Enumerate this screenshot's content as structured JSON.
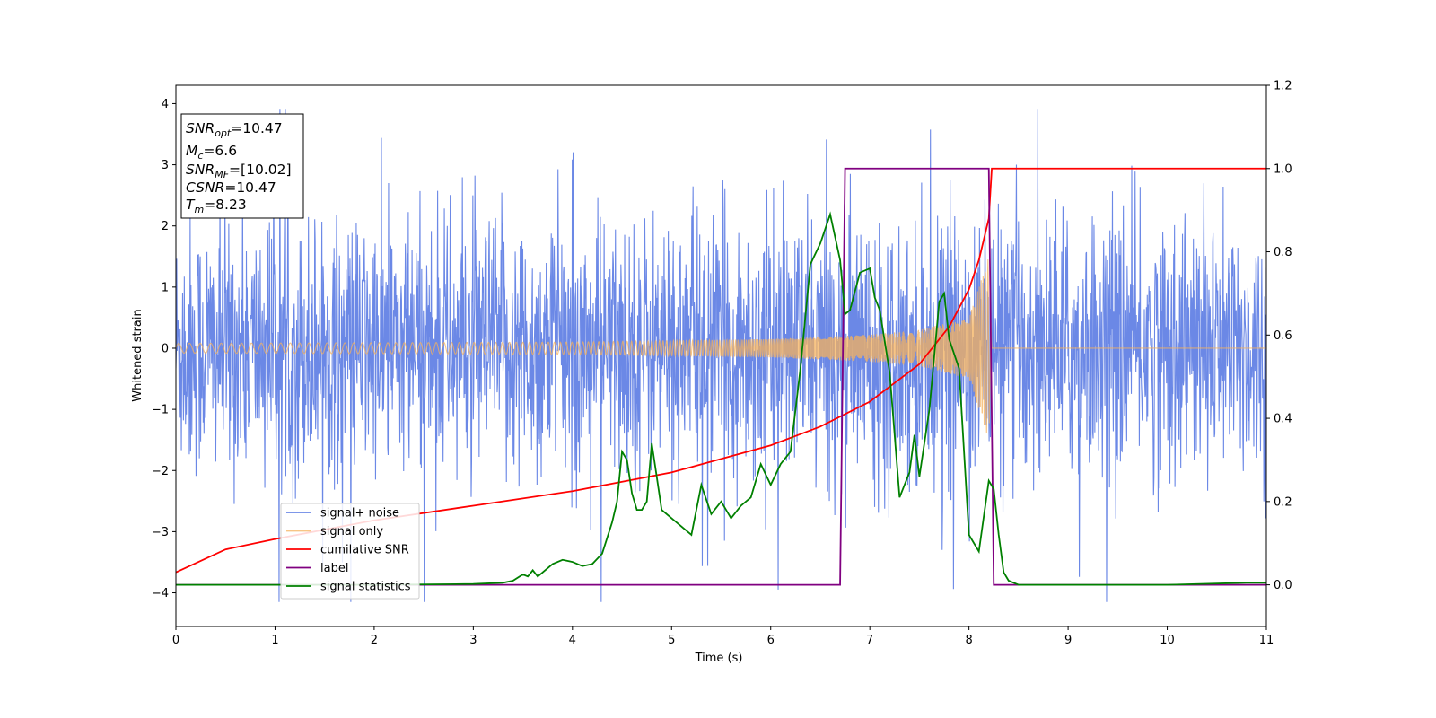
{
  "chart_data": {
    "type": "line",
    "xlabel": "Time (s)",
    "ylabel": "Whitened strain",
    "ylabel_right": "",
    "xlim": [
      0,
      11
    ],
    "ylim": [
      -4.55,
      4.3
    ],
    "ylim_right": [
      -0.1,
      1.2
    ],
    "x_ticks": [
      "0",
      "1",
      "2",
      "3",
      "4",
      "5",
      "6",
      "7",
      "8",
      "9",
      "10",
      "11"
    ],
    "y_ticks": [
      "4",
      "3",
      "2",
      "1",
      "0",
      "−1",
      "−2",
      "−3",
      "−4"
    ],
    "y_right_ticks": [
      "1.2",
      "1.0",
      "0.8",
      "0.6",
      "0.4",
      "0.2",
      "0.0"
    ],
    "grid": false,
    "legend_position": "lower-left",
    "colors": {
      "signal_noise": "#6b88e6",
      "signal_only": "#f5b25c",
      "cumulative_snr": "#ff0000",
      "label": "#800080",
      "signal_statistics": "#008000"
    },
    "annotation": [
      {
        "name": "SNR",
        "sub": "opt",
        "value": "=10.47"
      },
      {
        "name": "M",
        "sub": "c",
        "value": "=6.6"
      },
      {
        "name": "SNR",
        "sub": "MF",
        "value": "=[10.02]"
      },
      {
        "name": "CSNR",
        "sub": "",
        "value": "=10.47"
      },
      {
        "name": "T",
        "sub": "m",
        "value": "=8.23"
      }
    ],
    "series": [
      {
        "name": "signal+ noise",
        "axis": "left",
        "description_range": [
          -4.15,
          3.9
        ],
        "x": [
          0,
          11
        ]
      },
      {
        "name": "signal only",
        "axis": "left",
        "merger_time": 8.23,
        "envelope": {
          "x": [
            0,
            2,
            4,
            6,
            7,
            7.5,
            8,
            8.2,
            8.23
          ],
          "amp": [
            0.08,
            0.09,
            0.1,
            0.15,
            0.22,
            0.3,
            0.5,
            1.5,
            0.0
          ]
        }
      },
      {
        "name": "cumilative SNR",
        "axis": "right",
        "x": [
          0,
          0.5,
          1,
          2,
          3,
          4,
          5,
          6,
          6.5,
          7,
          7.5,
          7.8,
          8.0,
          8.1,
          8.2,
          8.23,
          11
        ],
        "y": [
          0.03,
          0.085,
          0.11,
          0.155,
          0.19,
          0.225,
          0.27,
          0.335,
          0.38,
          0.44,
          0.53,
          0.62,
          0.71,
          0.78,
          0.88,
          1.0,
          1.0
        ]
      },
      {
        "name": "label",
        "axis": "right",
        "x": [
          0,
          6.7,
          6.75,
          8.2,
          8.25,
          11
        ],
        "y": [
          0,
          0,
          1,
          1,
          0,
          0
        ]
      },
      {
        "name": "signal statistics",
        "axis": "right",
        "x": [
          0,
          1,
          2,
          3,
          3.3,
          3.4,
          3.5,
          3.55,
          3.6,
          3.65,
          3.7,
          3.8,
          3.9,
          4.0,
          4.1,
          4.2,
          4.3,
          4.4,
          4.45,
          4.5,
          4.55,
          4.6,
          4.65,
          4.7,
          4.75,
          4.8,
          4.9,
          5.0,
          5.1,
          5.2,
          5.3,
          5.4,
          5.5,
          5.6,
          5.7,
          5.8,
          5.9,
          6.0,
          6.1,
          6.2,
          6.3,
          6.4,
          6.5,
          6.6,
          6.7,
          6.75,
          6.8,
          6.9,
          7.0,
          7.05,
          7.1,
          7.2,
          7.3,
          7.4,
          7.45,
          7.5,
          7.6,
          7.7,
          7.75,
          7.8,
          7.9,
          8.0,
          8.1,
          8.2,
          8.25,
          8.3,
          8.35,
          8.4,
          8.5,
          8.6,
          9,
          10,
          10.8,
          11
        ],
        "y": [
          0.0,
          0.0,
          0.0,
          0.002,
          0.005,
          0.01,
          0.025,
          0.02,
          0.035,
          0.02,
          0.03,
          0.05,
          0.06,
          0.055,
          0.045,
          0.05,
          0.075,
          0.15,
          0.2,
          0.32,
          0.3,
          0.22,
          0.18,
          0.18,
          0.2,
          0.34,
          0.18,
          0.16,
          0.14,
          0.12,
          0.24,
          0.17,
          0.2,
          0.16,
          0.19,
          0.21,
          0.29,
          0.24,
          0.29,
          0.32,
          0.52,
          0.77,
          0.82,
          0.89,
          0.78,
          0.65,
          0.66,
          0.75,
          0.76,
          0.69,
          0.66,
          0.51,
          0.21,
          0.27,
          0.36,
          0.26,
          0.42,
          0.68,
          0.7,
          0.59,
          0.52,
          0.12,
          0.08,
          0.25,
          0.23,
          0.12,
          0.03,
          0.01,
          0.0,
          0.0,
          0.0,
          0.0,
          0.005,
          0.005
        ]
      }
    ]
  }
}
